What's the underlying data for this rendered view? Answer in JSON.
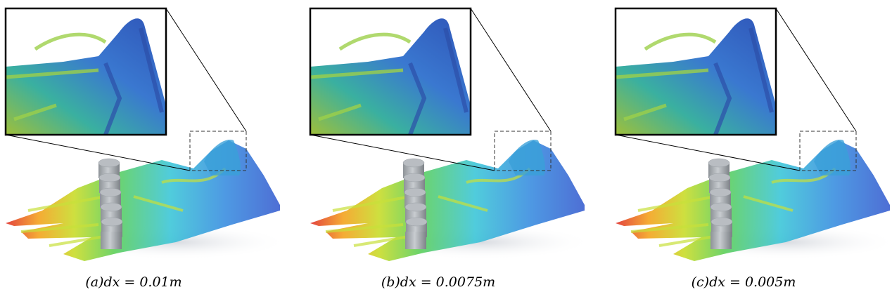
{
  "panels": [
    {
      "caption": "(a)dx = 0.01m"
    },
    {
      "caption": "(b)dx = 0.0075m"
    },
    {
      "caption": "(c)dx = 0.005m"
    }
  ]
}
